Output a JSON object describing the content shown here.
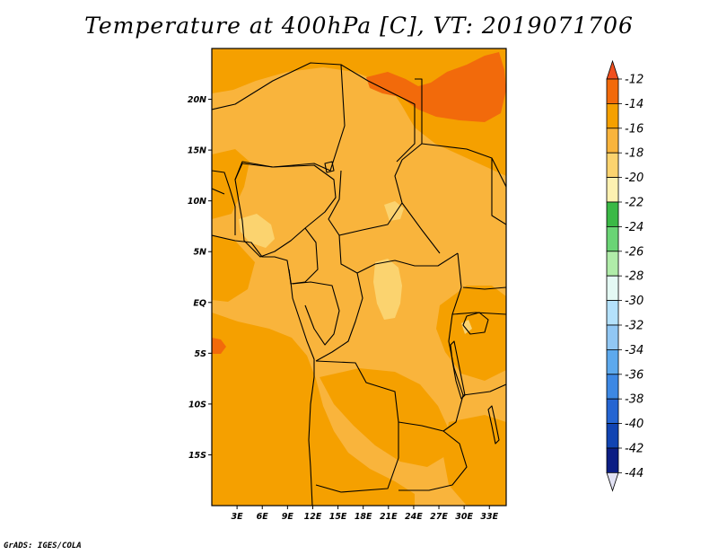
{
  "title": "Temperature at 400hPa [C], VT: 2019071706",
  "credit": "GrADS: IGES/COLA",
  "map": {
    "lat_range": [
      -20,
      25
    ],
    "lon_range": [
      0,
      35
    ],
    "lat_labels": [
      {
        "lat": 20,
        "text": "20N"
      },
      {
        "lat": 15,
        "text": "15N"
      },
      {
        "lat": 10,
        "text": "10N"
      },
      {
        "lat": 5,
        "text": "5N"
      },
      {
        "lat": 0,
        "text": "EQ"
      },
      {
        "lat": -5,
        "text": "5S"
      },
      {
        "lat": -10,
        "text": "10S"
      },
      {
        "lat": -15,
        "text": "15S"
      }
    ],
    "lon_labels": [
      {
        "lon": 3,
        "text": "3E"
      },
      {
        "lon": 6,
        "text": "6E"
      },
      {
        "lon": 9,
        "text": "9E"
      },
      {
        "lon": 12,
        "text": "12E"
      },
      {
        "lon": 15,
        "text": "15E"
      },
      {
        "lon": 18,
        "text": "18E"
      },
      {
        "lon": 21,
        "text": "21E"
      },
      {
        "lon": 24,
        "text": "24E"
      },
      {
        "lon": 27,
        "text": "27E"
      },
      {
        "lon": 30,
        "text": "30E"
      },
      {
        "lon": 33,
        "text": "33E"
      }
    ]
  },
  "colorbar": {
    "labels": [
      "-12",
      "-14",
      "-16",
      "-18",
      "-20",
      "-22",
      "-24",
      "-26",
      "-28",
      "-30",
      "-32",
      "-34",
      "-36",
      "-38",
      "-40",
      "-42",
      "-44"
    ],
    "colors": [
      "#f04f1e",
      "#f26a0b",
      "#f5a000",
      "#f9b43c",
      "#fbd36f",
      "#fdf1b1",
      "#3bb946",
      "#6ad475",
      "#b0eca9",
      "#e4f9f4",
      "#b4e1fb",
      "#91c7f4",
      "#5da9ed",
      "#3d88e4",
      "#2565d2",
      "#1144b2",
      "#0c1e84",
      "#e2e2f4"
    ]
  },
  "field_colors": {
    "bg": "#f9b43c",
    "c14_16": "#f5a000",
    "c12_14": "#f26a0b",
    "c18_20": "#fbd36f",
    "c20_22": "#fdf1b1",
    "warm_max": "#f04f1e"
  }
}
